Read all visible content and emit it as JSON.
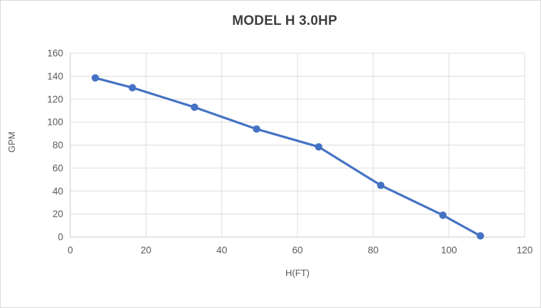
{
  "chart_data": {
    "type": "line",
    "title": "MODEL H 3.0HP",
    "xlabel": "H(FT)",
    "ylabel": "GPM",
    "x": [
      6.6,
      16.4,
      32.8,
      49.2,
      65.6,
      82,
      98.4,
      108.3
    ],
    "y": [
      138.5,
      130,
      113,
      94,
      78.5,
      45,
      19,
      1
    ],
    "xlim": [
      0,
      120
    ],
    "ylim": [
      0,
      160
    ],
    "x_ticks": [
      0,
      20,
      40,
      60,
      80,
      100,
      120
    ],
    "y_ticks": [
      0,
      20,
      40,
      60,
      80,
      100,
      120,
      140,
      160
    ],
    "grid": "both",
    "legend_position": "none",
    "line_color": "#4472C4",
    "marker": "circle",
    "grid_color": "#DCDCDC",
    "axis_line_color": "#C8C8C8",
    "tick_text_color": "#595959",
    "title_color": "#3F3F3F"
  }
}
